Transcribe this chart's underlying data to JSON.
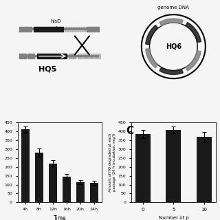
{
  "left_bars": {
    "categories": [
      "4h",
      "8h",
      "12h",
      "16h",
      "20h",
      "24h"
    ],
    "values": [
      410,
      280,
      220,
      145,
      115,
      110
    ],
    "errors": [
      18,
      22,
      18,
      15,
      12,
      12
    ],
    "xlabel": "Time",
    "ylabel": "",
    "bar_color": "#1a1a1a",
    "ylim": [
      0,
      450
    ]
  },
  "right_bars": {
    "categories": [
      "0",
      "5",
      "10"
    ],
    "values": [
      385,
      408,
      368
    ],
    "errors": [
      22,
      18,
      30
    ],
    "xlabel": "Number of p",
    "ylabel": "Amount of HQ degraded at each\npassage (24 h incubation, mg/l)",
    "bar_color": "#1a1a1a",
    "ylim": [
      0,
      450
    ],
    "label_c": "C"
  },
  "background_color": "#f0f0f0"
}
